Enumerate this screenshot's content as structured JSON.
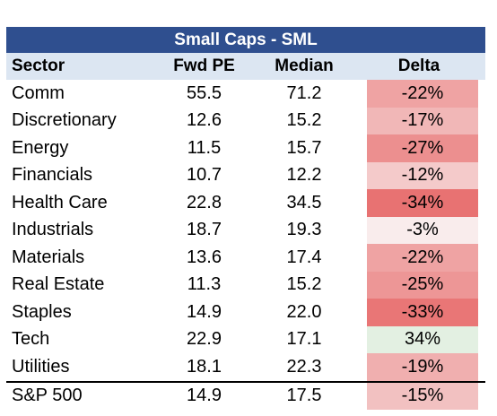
{
  "title": "Small Caps - SML",
  "headers": {
    "sector": "Sector",
    "fwd_pe": "Fwd PE",
    "median": "Median",
    "delta": "Delta"
  },
  "rows": [
    {
      "sector": "Comm",
      "fwd_pe": "55.5",
      "median": "71.2",
      "delta": "-22%",
      "color": "#efa3a3"
    },
    {
      "sector": "Discretionary",
      "fwd_pe": "12.6",
      "median": "15.2",
      "delta": "-17%",
      "color": "#f1b7b7"
    },
    {
      "sector": "Energy",
      "fwd_pe": "11.5",
      "median": "15.7",
      "delta": "-27%",
      "color": "#ec8f8f"
    },
    {
      "sector": "Financials",
      "fwd_pe": "10.7",
      "median": "12.2",
      "delta": "-12%",
      "color": "#f4caca"
    },
    {
      "sector": "Health Care",
      "fwd_pe": "22.8",
      "median": "34.5",
      "delta": "-34%",
      "color": "#e87272"
    },
    {
      "sector": "Industrials",
      "fwd_pe": "18.7",
      "median": "19.3",
      "delta": "-3%",
      "color": "#f9ecec"
    },
    {
      "sector": "Materials",
      "fwd_pe": "13.6",
      "median": "17.4",
      "delta": "-22%",
      "color": "#efa3a3"
    },
    {
      "sector": "Real Estate",
      "fwd_pe": "11.3",
      "median": "15.2",
      "delta": "-25%",
      "color": "#ed9696"
    },
    {
      "sector": "Staples",
      "fwd_pe": "14.9",
      "median": "22.0",
      "delta": "-33%",
      "color": "#e97676"
    },
    {
      "sector": "Tech",
      "fwd_pe": "22.9",
      "median": "17.1",
      "delta": "34%",
      "color": "#e3f0e2"
    },
    {
      "sector": "Utilities",
      "fwd_pe": "18.1",
      "median": "22.3",
      "delta": "-19%",
      "color": "#f0afaf"
    }
  ],
  "total": {
    "sector": "S&P 500",
    "fwd_pe": "14.9",
    "median": "17.5",
    "delta": "-15%",
    "color": "#f2c1c1"
  }
}
